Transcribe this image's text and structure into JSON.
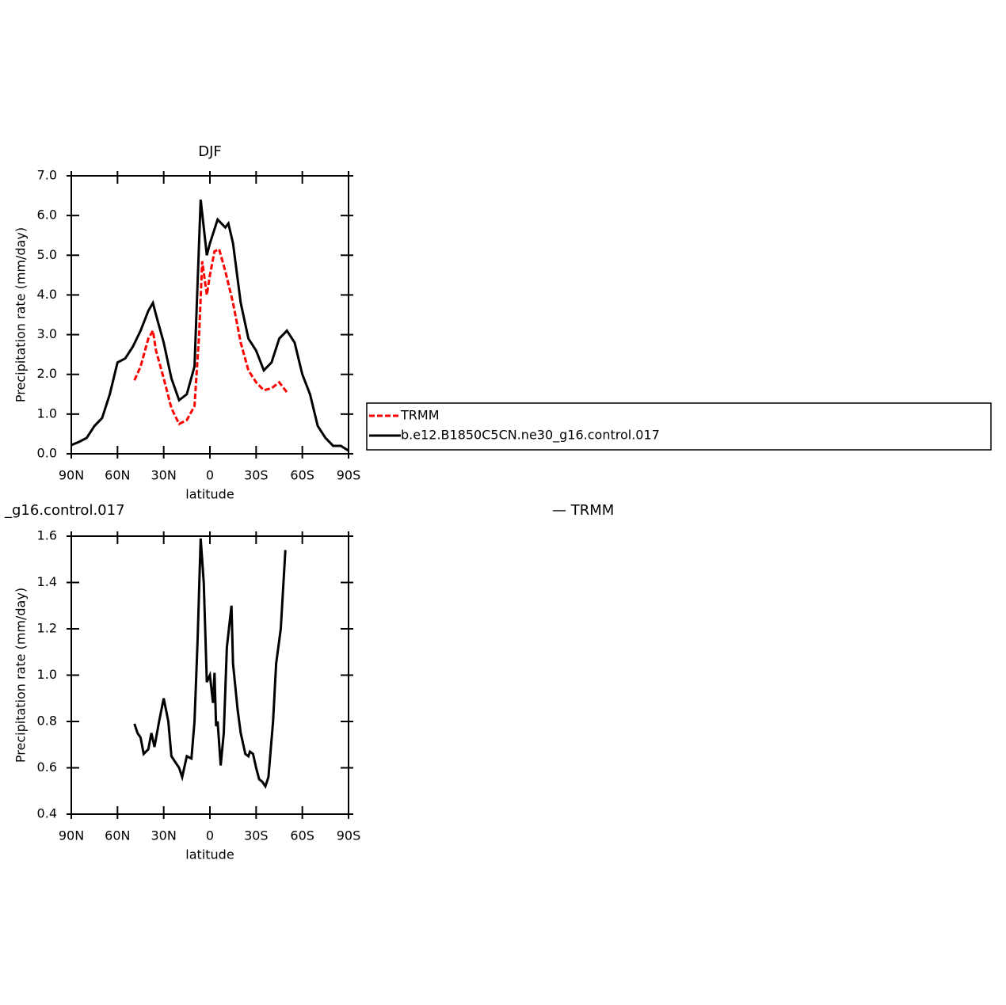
{
  "chart_data": [
    {
      "type": "line",
      "title": "DJF",
      "xlabel": "latitude",
      "ylabel": "Precipitation rate (mm/day)",
      "xlim": [
        90,
        -90
      ],
      "xticks": [
        {
          "value": 90,
          "label": "90N"
        },
        {
          "value": 60,
          "label": "60N"
        },
        {
          "value": 30,
          "label": "30N"
        },
        0,
        {
          "value": -30,
          "label": "30S"
        },
        {
          "value": -60,
          "label": "60S"
        },
        {
          "value": -90,
          "label": "90S"
        }
      ],
      "ylim": [
        0,
        7
      ],
      "yticks": [
        {
          "value": 0,
          "label": "0.0"
        },
        {
          "value": 1,
          "label": "1.0"
        },
        {
          "value": 2,
          "label": "2.0"
        },
        {
          "value": 3,
          "label": "3.0"
        },
        {
          "value": 4,
          "label": "4.0"
        },
        {
          "value": 5,
          "label": "5.0"
        },
        {
          "value": 6,
          "label": "6.0"
        },
        {
          "value": 7,
          "label": "7.0"
        }
      ],
      "legend": "right",
      "series": [
        {
          "name": "TRMM",
          "color": "#ff0000",
          "dash": true,
          "x": [
            49,
            45,
            40,
            37,
            35,
            30,
            25,
            20,
            15,
            10,
            7,
            5,
            2,
            0,
            -3,
            -6,
            -10,
            -15,
            -20,
            -25,
            -30,
            -35,
            -40,
            -45,
            -50
          ],
          "values": [
            1.85,
            2.2,
            2.9,
            3.1,
            2.6,
            1.9,
            1.15,
            0.75,
            0.85,
            1.2,
            3.0,
            4.85,
            4.0,
            4.5,
            5.1,
            5.15,
            4.6,
            3.8,
            2.8,
            2.1,
            1.8,
            1.6,
            1.65,
            1.8,
            1.55
          ]
        },
        {
          "name": "b.e12.B1850C5CN.ne30_g16.control.017",
          "color": "#000000",
          "dash": false,
          "x": [
            90,
            85,
            80,
            75,
            70,
            65,
            60,
            55,
            50,
            45,
            40,
            37,
            35,
            30,
            25,
            20,
            15,
            10,
            6,
            2,
            0,
            -5,
            -10,
            -12,
            -15,
            -20,
            -25,
            -30,
            -35,
            -40,
            -45,
            -50,
            -55,
            -60,
            -65,
            -70,
            -75,
            -80,
            -85,
            -90
          ],
          "values": [
            0.22,
            0.3,
            0.4,
            0.7,
            0.9,
            1.5,
            2.3,
            2.4,
            2.7,
            3.1,
            3.6,
            3.8,
            3.5,
            2.8,
            1.9,
            1.35,
            1.5,
            2.2,
            6.4,
            5.0,
            5.3,
            5.9,
            5.7,
            5.8,
            5.3,
            3.8,
            2.9,
            2.6,
            2.1,
            2.3,
            2.9,
            3.1,
            2.8,
            2.0,
            1.5,
            0.7,
            0.4,
            0.2,
            0.2,
            0.08
          ]
        }
      ]
    },
    {
      "type": "line",
      "title": "_g16.control.017",
      "annotation": "— TRMM",
      "xlabel": "latitude",
      "ylabel": "Precipitation rate (mm/day)",
      "xlim": [
        90,
        -90
      ],
      "xticks": [
        {
          "value": 90,
          "label": "90N"
        },
        {
          "value": 60,
          "label": "60N"
        },
        {
          "value": 30,
          "label": "30N"
        },
        0,
        {
          "value": -30,
          "label": "30S"
        },
        {
          "value": -60,
          "label": "60S"
        },
        {
          "value": -90,
          "label": "90S"
        }
      ],
      "ylim": [
        0.4,
        1.6
      ],
      "yticks": [
        0.4,
        0.6,
        0.8,
        {
          "value": 1,
          "label": "1.0"
        },
        1.2,
        1.4,
        1.6
      ],
      "series": [
        {
          "color": "#000000",
          "dash": false,
          "x": [
            49,
            47,
            45,
            43,
            40,
            38,
            36,
            33,
            30,
            27,
            25,
            20,
            18,
            15,
            12,
            10,
            8,
            6,
            4,
            2,
            0,
            -2,
            -3,
            -4,
            -5,
            -7,
            -9,
            -11,
            -14,
            -15,
            -18,
            -20,
            -23,
            -25,
            -26,
            -28,
            -30,
            -32,
            -34,
            -36,
            -38,
            -41,
            -43,
            -46,
            -49
          ],
          "values": [
            0.79,
            0.75,
            0.73,
            0.66,
            0.68,
            0.75,
            0.69,
            0.8,
            0.9,
            0.8,
            0.65,
            0.6,
            0.56,
            0.65,
            0.64,
            0.8,
            1.15,
            1.59,
            1.4,
            0.97,
            1.0,
            0.88,
            1.01,
            0.78,
            0.8,
            0.61,
            0.75,
            1.12,
            1.3,
            1.05,
            0.85,
            0.75,
            0.66,
            0.65,
            0.67,
            0.66,
            0.6,
            0.55,
            0.54,
            0.52,
            0.56,
            0.8,
            1.05,
            1.2,
            1.54
          ]
        }
      ]
    }
  ]
}
